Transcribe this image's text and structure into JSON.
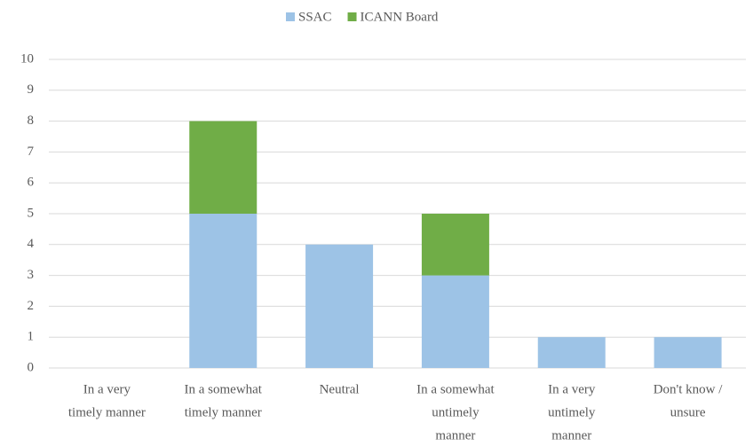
{
  "chart_data": {
    "type": "stacked_bar",
    "categories": [
      [
        "In a very",
        "timely manner"
      ],
      [
        "In a somewhat",
        "timely manner"
      ],
      [
        "Neutral"
      ],
      [
        "In a somewhat",
        "untimely",
        "manner"
      ],
      [
        "In a very",
        "untimely",
        "manner"
      ],
      [
        "Don't know /",
        "unsure"
      ]
    ],
    "series": [
      {
        "name": "SSAC",
        "color": "#9dc3e6",
        "values": [
          0,
          5,
          4,
          3,
          1,
          1
        ]
      },
      {
        "name": "ICANN Board",
        "color": "#70ad47",
        "values": [
          0,
          3,
          0,
          2,
          0,
          0
        ]
      }
    ],
    "ylim": [
      0,
      10
    ],
    "yticks": [
      0,
      1,
      2,
      3,
      4,
      5,
      6,
      7,
      8,
      9,
      10
    ],
    "grid": true,
    "legend": "top"
  }
}
